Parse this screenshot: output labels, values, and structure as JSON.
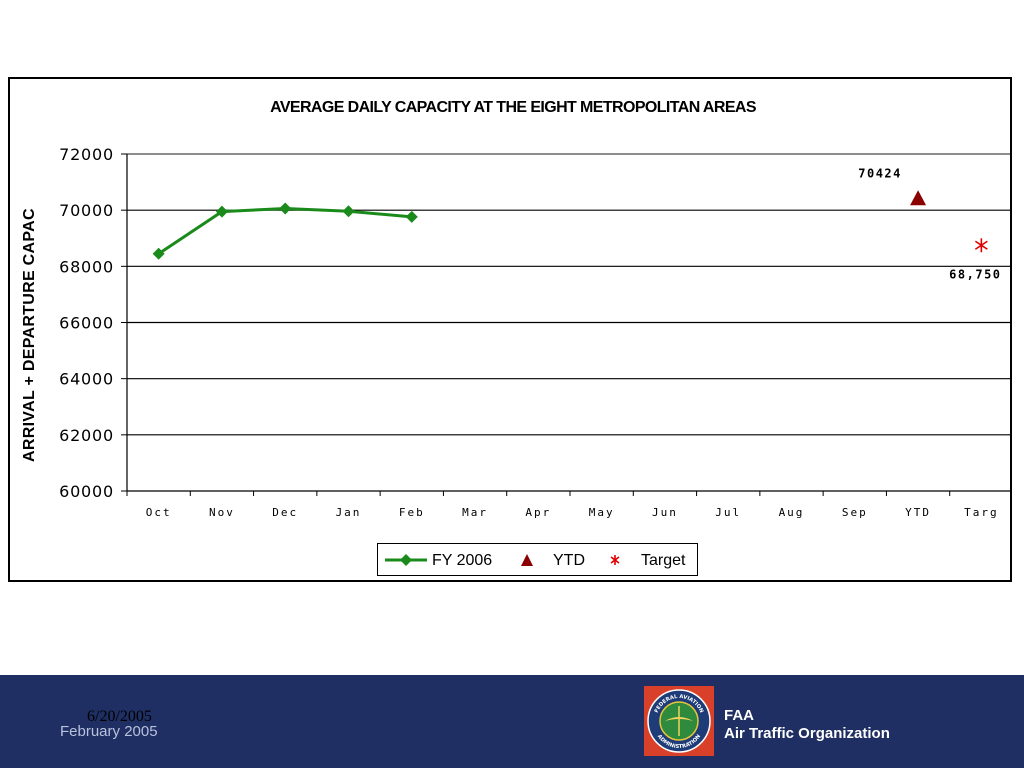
{
  "chart_data": {
    "type": "line",
    "title": "AVERAGE DAILY CAPACITY AT THE EIGHT METROPOLITAN AREAS",
    "ylabel": "ARRIVAL + DEPARTURE CAPAC",
    "xlabel": "",
    "ylim": [
      60000,
      72000
    ],
    "yticks": [
      "72000",
      "70000",
      "68000",
      "66000",
      "64000",
      "62000",
      "60000"
    ],
    "categories": [
      "Oct",
      "Nov",
      "Dec",
      "Jan",
      "Feb",
      "Mar",
      "Apr",
      "May",
      "Jun",
      "Jul",
      "Aug",
      "Sep",
      "YTD",
      "Targ"
    ],
    "grid": true,
    "legend_position": "bottom",
    "series": [
      {
        "name": "FY 2006",
        "color": "#1a8a1a",
        "marker": "diamond",
        "values": [
          68450,
          69950,
          70060,
          69960,
          69760,
          null,
          null,
          null,
          null,
          null,
          null,
          null,
          null,
          null
        ]
      },
      {
        "name": "YTD",
        "color": "#8b0000",
        "marker": "triangle",
        "values": [
          null,
          null,
          null,
          null,
          null,
          null,
          null,
          null,
          null,
          null,
          null,
          null,
          70424,
          null
        ],
        "data_label": "70424"
      },
      {
        "name": "Target",
        "color": "#e00000",
        "marker": "asterisk",
        "values": [
          null,
          null,
          null,
          null,
          null,
          null,
          null,
          null,
          null,
          null,
          null,
          null,
          null,
          68750
        ],
        "data_label": "68,750"
      }
    ]
  },
  "footer": {
    "date": "6/20/2005",
    "month": "February 2005",
    "org_line1": "FAA",
    "org_line2": "Air Traffic Organization",
    "background_color": "#1f2e63"
  },
  "seal": {
    "icon": "faa-seal-icon",
    "top_text": "FEDERAL AVIATION",
    "bottom_text": "ADMINISTRATION"
  }
}
